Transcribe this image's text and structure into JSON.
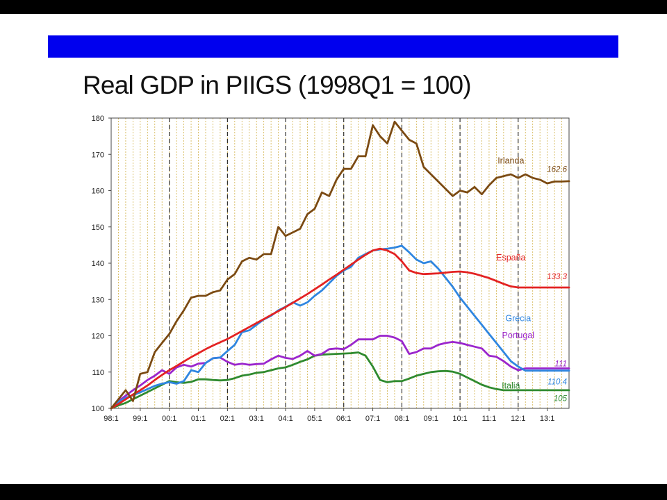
{
  "slide": {
    "title": "Real GDP in PIIGS (1998Q1 = 100)",
    "bar_color": "#0000ee"
  },
  "chart_data": {
    "type": "line",
    "title": "",
    "xlabel": "",
    "ylabel": "",
    "ylim": [
      100,
      180
    ],
    "yticks": [
      100,
      110,
      120,
      130,
      140,
      150,
      160,
      170,
      180
    ],
    "x_start": "98:1",
    "x_end": "13:4",
    "quarters": 64,
    "xtick_labels": [
      "98:1",
      "99:1",
      "00:1",
      "01:1",
      "02:1",
      "03:1",
      "04:1",
      "05:1",
      "06:1",
      "07:1",
      "08:1",
      "09:1",
      "10:1",
      "11:1",
      "12:1",
      "13:1"
    ],
    "grid": {
      "minor_vertical_lines": true,
      "minor_color": "#d2b24a",
      "dashed_lines_at": [
        "00:1",
        "02:1",
        "04:1",
        "06:1",
        "08:1",
        "10:1",
        "12:1"
      ]
    },
    "series": [
      {
        "name": "Irlanda",
        "color": "#7b4a12",
        "end_label": "162.6",
        "values": [
          100,
          102.5,
          105,
          102,
          109.5,
          110,
          115.5,
          118,
          120.5,
          124,
          127,
          130.5,
          131,
          131,
          132,
          132.5,
          135.5,
          137,
          140.5,
          141.5,
          141,
          142.5,
          142.5,
          150,
          147.5,
          148.5,
          149.5,
          153.5,
          155,
          159.5,
          158.5,
          163,
          166,
          166,
          169.5,
          169.5,
          178,
          175,
          173,
          179,
          176.5,
          174,
          173,
          166.5,
          164.5,
          162.5,
          160.5,
          158.5,
          160,
          159.5,
          161,
          159,
          161.5,
          163.5,
          164,
          164.5,
          163.5,
          164.5,
          163.5,
          163,
          162,
          162.5,
          162.5,
          162.6
        ]
      },
      {
        "name": "España",
        "color": "#e32222",
        "end_label": "133.3",
        "values": [
          100,
          101.2,
          102.5,
          103.8,
          105,
          106.3,
          107.8,
          109.2,
          110.5,
          111.7,
          112.9,
          114.1,
          115.2,
          116.3,
          117.3,
          118.2,
          119.1,
          120.2,
          121.3,
          122.4,
          123.5,
          124.6,
          125.7,
          126.8,
          127.9,
          129.1,
          130.3,
          131.5,
          132.8,
          134.1,
          135.5,
          136.8,
          138.2,
          139.6,
          141,
          142.3,
          143.5,
          144,
          143.5,
          142.5,
          140.5,
          138,
          137.3,
          137,
          137.1,
          137.2,
          137.4,
          137.6,
          137.7,
          137.5,
          137.1,
          136.5,
          135.9,
          135.1,
          134.3,
          133.6,
          133.3,
          133.3,
          133.3,
          133.3,
          133.3,
          133.3,
          133.3,
          133.3
        ]
      },
      {
        "name": "Grecia",
        "color": "#2f86e0",
        "end_label": "110.4",
        "values": [
          100,
          101.8,
          102.9,
          103.6,
          104.4,
          105.3,
          106.2,
          106.8,
          107.2,
          106.8,
          107.5,
          110.5,
          110,
          112.5,
          113.8,
          114,
          115.8,
          117.5,
          121,
          121.5,
          123,
          124.5,
          125.5,
          127,
          128,
          129.2,
          128.3,
          129.2,
          131,
          132.5,
          134.5,
          136.5,
          138,
          139,
          141.5,
          142.5,
          143.5,
          143.8,
          144,
          144.3,
          144.8,
          143,
          141,
          140,
          140.5,
          138.5,
          136,
          133.5,
          130.5,
          128,
          125.5,
          123,
          120.5,
          118,
          115.5,
          113,
          111.5,
          110.4,
          110.4,
          110.4,
          110.4,
          110.4,
          110.4,
          110.4
        ]
      },
      {
        "name": "Portugal",
        "color": "#9b26cc",
        "end_label": "111",
        "values": [
          100,
          102,
          103.5,
          105,
          106.3,
          107.8,
          109,
          110.5,
          109.5,
          111.3,
          112,
          111.5,
          112.3,
          112.5,
          113.8,
          114,
          112.8,
          112,
          112.3,
          112,
          112.2,
          112.3,
          113.5,
          114.5,
          113.9,
          113.6,
          114.5,
          115.8,
          114.5,
          115,
          116.3,
          116.5,
          116.3,
          117.5,
          119,
          119,
          119,
          120,
          120,
          119.5,
          118.5,
          115,
          115.5,
          116.5,
          116.5,
          117.5,
          118,
          118.3,
          118,
          117.5,
          117,
          116.5,
          114.5,
          114.2,
          113,
          111.5,
          110.5,
          111,
          111,
          111,
          111,
          111,
          111,
          111
        ]
      },
      {
        "name": "Italia",
        "color": "#2f8a2f",
        "end_label": "105",
        "values": [
          100,
          100.8,
          101.5,
          102.5,
          103.5,
          104.5,
          105.5,
          106.5,
          107.5,
          107.2,
          107,
          107.3,
          108,
          108,
          107.8,
          107.7,
          107.8,
          108.3,
          109,
          109.3,
          109.8,
          110,
          110.5,
          111,
          111.3,
          112,
          112.8,
          113.5,
          114.5,
          114.8,
          114.9,
          115,
          115.1,
          115.2,
          115.4,
          114.5,
          111.5,
          107.8,
          107.2,
          107.5,
          107.5,
          108.2,
          109,
          109.5,
          110,
          110.2,
          110.3,
          110.1,
          109.5,
          108.5,
          107.5,
          106.5,
          105.8,
          105.3,
          105,
          105,
          105,
          105,
          105,
          105,
          105,
          105,
          105,
          105
        ]
      }
    ]
  }
}
